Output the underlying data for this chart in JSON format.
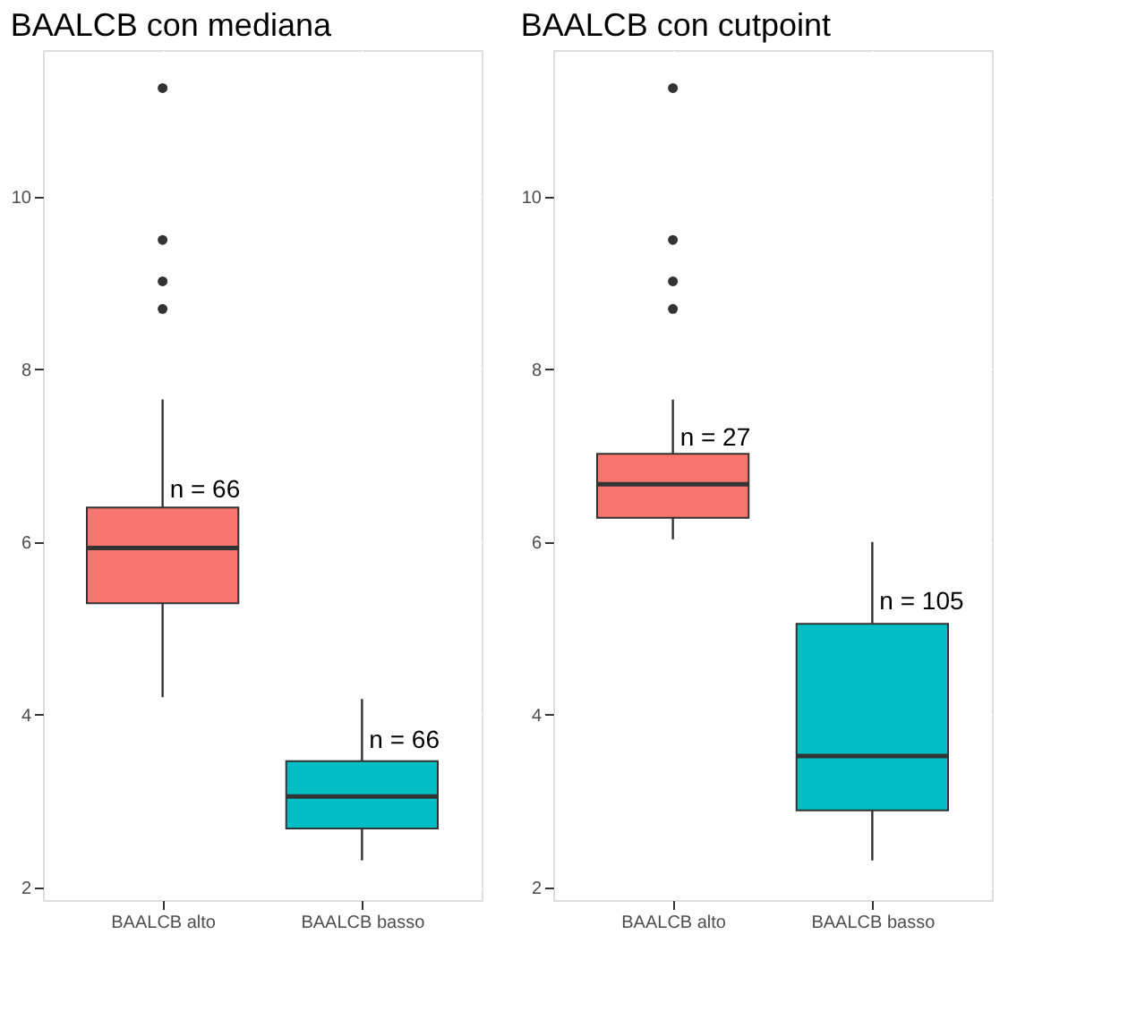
{
  "chart_data": [
    {
      "type": "box",
      "title": "BAALCB con mediana",
      "categories": [
        "BAALCB alto",
        "BAALCB basso"
      ],
      "colors": [
        "#f8766d",
        "#00bfc4"
      ],
      "boxes": [
        {
          "low": 4.2,
          "q1": 5.29,
          "median": 5.93,
          "q3": 6.4,
          "high": 7.65,
          "outliers": [
            8.7,
            9.02,
            9.5,
            11.26
          ]
        },
        {
          "low": 2.31,
          "q1": 2.68,
          "median": 3.05,
          "q3": 3.46,
          "high": 4.18
        }
      ],
      "ylim": [
        1.85,
        11.7
      ],
      "yticks": [
        2,
        4,
        6,
        8,
        10
      ],
      "grid": true,
      "annotations": [
        {
          "text": "n = 66",
          "x": "BAALCB alto",
          "y": 6.6
        },
        {
          "text": "n = 66",
          "x": "BAALCB basso",
          "y": 3.7
        }
      ]
    },
    {
      "type": "box",
      "title": "BAALCB con cutpoint",
      "categories": [
        "BAALCB alto",
        "BAALCB basso"
      ],
      "colors": [
        "#f8766d",
        "#00bfc4"
      ],
      "boxes": [
        {
          "low": 6.03,
          "q1": 6.28,
          "median": 6.67,
          "q3": 7.02,
          "high": 7.65,
          "outliers": [
            8.7,
            9.02,
            9.5,
            11.26
          ]
        },
        {
          "low": 2.31,
          "q1": 2.89,
          "median": 3.52,
          "q3": 5.05,
          "high": 6.0
        }
      ],
      "ylim": [
        1.85,
        11.7
      ],
      "yticks": [
        2,
        4,
        6,
        8,
        10
      ],
      "grid": true,
      "annotations": [
        {
          "text": "n = 27",
          "x": "BAALCB alto",
          "y": 7.2
        },
        {
          "text": "n = 105",
          "x": "BAALCB basso",
          "y": 5.3
        }
      ]
    }
  ]
}
